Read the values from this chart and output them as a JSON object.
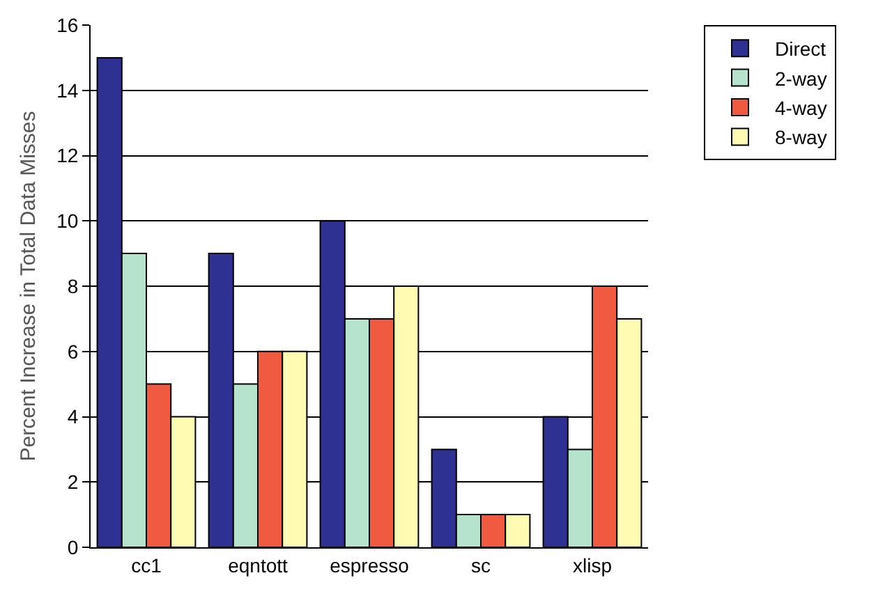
{
  "chart_data": {
    "type": "bar",
    "ylabel": "Percent Increase in Total Data Misses",
    "categories": [
      "cc1",
      "eqntott",
      "espresso",
      "sc",
      "xlisp"
    ],
    "series": [
      {
        "name": "Direct",
        "color": "#2e3192",
        "values": [
          15,
          9,
          10,
          3,
          4
        ]
      },
      {
        "name": "2-way",
        "color": "#b5e3cc",
        "values": [
          9,
          5,
          7,
          1,
          3
        ]
      },
      {
        "name": "4-way",
        "color": "#f05a40",
        "values": [
          5,
          6,
          7,
          1,
          8
        ]
      },
      {
        "name": "8-way",
        "color": "#fffbb3",
        "values": [
          4,
          6,
          8,
          1,
          7
        ]
      }
    ],
    "ylim": [
      0,
      16
    ],
    "yticks": [
      0,
      2,
      4,
      6,
      8,
      10,
      12,
      14,
      16
    ],
    "grid": "y",
    "legend": "top right"
  }
}
